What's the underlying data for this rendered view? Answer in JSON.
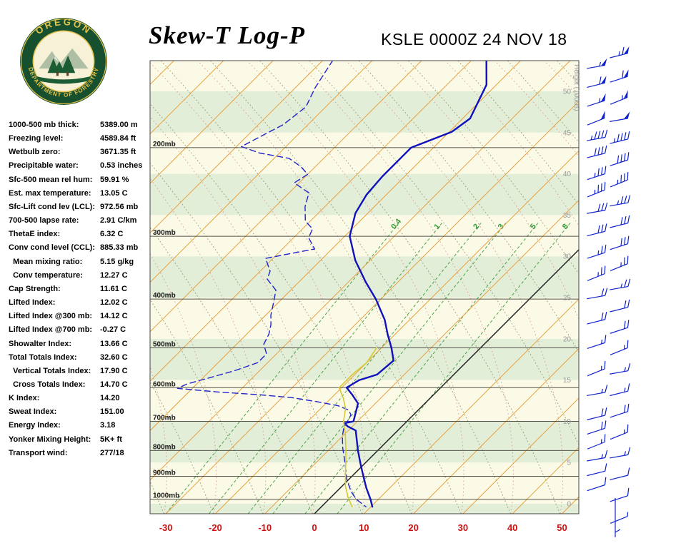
{
  "header": {
    "title": "Skew-T Log-P",
    "station_line": "KSLE 0000Z 24 NOV 18",
    "logo_text_top": "OREGON",
    "logo_text_bottom": "DEPARTMENT OF FORESTRY"
  },
  "stats": [
    {
      "label": "1000-500 mb thick:",
      "value": "5389.00 m"
    },
    {
      "label": "Freezing level:",
      "value": "4589.84 ft"
    },
    {
      "label": "Wetbulb zero:",
      "value": "3671.35 ft"
    },
    {
      "label": "Precipitable water:",
      "value": "0.53 inches"
    },
    {
      "label": "Sfc-500 mean rel hum:",
      "value": "59.91 %"
    },
    {
      "label": "Est. max temperature:",
      "value": "13.05 C"
    },
    {
      "label": "Sfc-Lift cond lev (LCL):",
      "value": "972.56 mb"
    },
    {
      "label": "700-500 lapse rate:",
      "value": "2.91 C/km"
    },
    {
      "label": "ThetaE index:",
      "value": "6.32 C"
    },
    {
      "label": "Conv cond level (CCL):",
      "value": "885.33 mb"
    },
    {
      "label": "  Mean mixing ratio:",
      "value": "5.15 g/kg"
    },
    {
      "label": "  Conv temperature:",
      "value": "12.27 C"
    },
    {
      "label": "Cap Strength:",
      "value": "11.61 C"
    },
    {
      "label": "Lifted Index:",
      "value": "12.02 C"
    },
    {
      "label": "Lifted Index @300 mb:",
      "value": "14.12 C"
    },
    {
      "label": "Lifted Index @700 mb:",
      "value": "-0.27 C"
    },
    {
      "label": "Showalter Index:",
      "value": "13.66 C"
    },
    {
      "label": "Total Totals Index:",
      "value": "32.60 C"
    },
    {
      "label": "  Vertical Totals Index:",
      "value": "17.90 C"
    },
    {
      "label": "  Cross Totals Index:",
      "value": "14.70 C"
    },
    {
      "label": "K Index:",
      "value": "14.20"
    },
    {
      "label": "Sweat Index:",
      "value": "151.00"
    },
    {
      "label": "Energy Index:",
      "value": "3.18"
    },
    {
      "label": "Yonker Mixing Height:",
      "value": "5K+ ft"
    },
    {
      "label": "Transport wind:",
      "value": "277/18"
    }
  ],
  "chart_data": {
    "type": "line",
    "title": "Skew-T Log-P sounding KSLE 0000Z 24 NOV 18",
    "x_axis": {
      "ticks_c": [
        -30,
        -20,
        -10,
        0,
        10,
        20,
        30,
        40,
        50
      ],
      "unit": "C"
    },
    "pressure_ticks_mb": [
      200,
      300,
      400,
      500,
      600,
      700,
      800,
      900,
      1000
    ],
    "pressure_label_suffix": "mb",
    "height_ticks_kft": [
      0,
      5,
      10,
      15,
      20,
      25,
      30,
      35,
      40,
      45,
      50
    ],
    "height_axis_label": "Height (1000s)",
    "mixing_ratio_lines": [
      {
        "label": "0.4",
        "t_bottom_c": -30.0
      },
      {
        "label": "1",
        "t_bottom_c": -21.3
      },
      {
        "label": "2",
        "t_bottom_c": -13.4
      },
      {
        "label": "3",
        "t_bottom_c": -8.4
      },
      {
        "label": "5",
        "t_bottom_c": -1.9
      },
      {
        "label": "8",
        "t_bottom_c": 4.6
      }
    ],
    "series": [
      {
        "name": "temperature",
        "style": "solid",
        "width": 2.4,
        "color": "#1111bb",
        "points": [
          [
            134,
            -57
          ],
          [
            150,
            -52
          ],
          [
            175,
            -48.5
          ],
          [
            186,
            -49.5
          ],
          [
            200,
            -54.5
          ],
          [
            212,
            -54.5
          ],
          [
            228,
            -54.5
          ],
          [
            248,
            -54
          ],
          [
            270,
            -52.5
          ],
          [
            300,
            -49
          ],
          [
            335,
            -43
          ],
          [
            370,
            -36.5
          ],
          [
            400,
            -31
          ],
          [
            440,
            -25
          ],
          [
            470,
            -21.5
          ],
          [
            500,
            -18
          ],
          [
            530,
            -15
          ],
          [
            565,
            -15.5
          ],
          [
            580,
            -18
          ],
          [
            600,
            -19
          ],
          [
            620,
            -16.4
          ],
          [
            645,
            -13.5
          ],
          [
            700,
            -10.8
          ],
          [
            706,
            -12.2
          ],
          [
            716,
            -11
          ],
          [
            730,
            -8.5
          ],
          [
            800,
            -4
          ],
          [
            850,
            -0.8
          ],
          [
            900,
            2.3
          ],
          [
            950,
            5.3
          ],
          [
            1000,
            8.4
          ],
          [
            1035,
            10.3
          ]
        ]
      },
      {
        "name": "dewpoint",
        "style": "dashed",
        "width": 1.4,
        "color": "#2222cc",
        "points": [
          [
            134,
            -88
          ],
          [
            152,
            -86
          ],
          [
            166,
            -84
          ],
          [
            180,
            -85
          ],
          [
            199,
            -89
          ],
          [
            205,
            -84
          ],
          [
            210,
            -77
          ],
          [
            218,
            -73
          ],
          [
            226,
            -70
          ],
          [
            235,
            -71
          ],
          [
            246,
            -66
          ],
          [
            262,
            -64
          ],
          [
            280,
            -61
          ],
          [
            290,
            -58
          ],
          [
            302,
            -57
          ],
          [
            318,
            -53.5
          ],
          [
            332,
            -61.5
          ],
          [
            352,
            -58
          ],
          [
            365,
            -57
          ],
          [
            384,
            -53
          ],
          [
            406,
            -51
          ],
          [
            430,
            -49
          ],
          [
            450,
            -47
          ],
          [
            470,
            -45.5
          ],
          [
            492,
            -44.5
          ],
          [
            514,
            -42
          ],
          [
            535,
            -42
          ],
          [
            555,
            -45
          ],
          [
            575,
            -49
          ],
          [
            590,
            -52
          ],
          [
            602,
            -53
          ],
          [
            612,
            -44
          ],
          [
            620,
            -35
          ],
          [
            628,
            -28
          ],
          [
            640,
            -22
          ],
          [
            652,
            -17
          ],
          [
            665,
            -14
          ],
          [
            680,
            -12.6
          ],
          [
            700,
            -12
          ],
          [
            720,
            -11.5
          ],
          [
            750,
            -10
          ],
          [
            792,
            -7.5
          ],
          [
            840,
            -4.5
          ],
          [
            880,
            -2.2
          ],
          [
            915,
            -0.3
          ],
          [
            965,
            2.9
          ],
          [
            1000,
            5.5
          ],
          [
            1035,
            9
          ]
        ]
      },
      {
        "name": "wetbulb",
        "style": "solid",
        "width": 1.6,
        "color": "#d6c830",
        "points": [
          [
            500,
            -21
          ],
          [
            535,
            -20
          ],
          [
            565,
            -20.5
          ],
          [
            600,
            -20.5
          ],
          [
            630,
            -17.5
          ],
          [
            660,
            -15
          ],
          [
            700,
            -12.8
          ],
          [
            740,
            -10
          ],
          [
            790,
            -7
          ],
          [
            840,
            -4.3
          ],
          [
            890,
            -1.8
          ],
          [
            940,
            0.6
          ],
          [
            990,
            3.4
          ],
          [
            1035,
            6.2
          ]
        ]
      }
    ],
    "wind_barbs": {
      "transport_wind": "277/18",
      "column_inner": [
        {
          "p": 138,
          "kt": 55
        },
        {
          "p": 150,
          "kt": 60
        },
        {
          "p": 163,
          "kt": 55
        },
        {
          "p": 177,
          "kt": 50
        },
        {
          "p": 192,
          "kt": 45
        },
        {
          "p": 207,
          "kt": 40
        },
        {
          "p": 228,
          "kt": 35
        },
        {
          "p": 246,
          "kt": 35
        },
        {
          "p": 268,
          "kt": 30
        },
        {
          "p": 296,
          "kt": 30
        },
        {
          "p": 327,
          "kt": 25
        },
        {
          "p": 361,
          "kt": 25
        },
        {
          "p": 396,
          "kt": 20
        },
        {
          "p": 443,
          "kt": 20
        },
        {
          "p": 494,
          "kt": 15
        },
        {
          "p": 558,
          "kt": 15
        },
        {
          "p": 617,
          "kt": 15
        },
        {
          "p": 687,
          "kt": 20
        },
        {
          "p": 731,
          "kt": 20
        },
        {
          "p": 780,
          "kt": 15
        },
        {
          "p": 832,
          "kt": 15
        },
        {
          "p": 887,
          "kt": 10
        },
        {
          "p": 947,
          "kt": 10
        }
      ],
      "column_outer": [
        {
          "p": 131,
          "kt": 65
        },
        {
          "p": 146,
          "kt": 60
        },
        {
          "p": 161,
          "kt": 55
        },
        {
          "p": 176,
          "kt": 50
        },
        {
          "p": 194,
          "kt": 45
        },
        {
          "p": 214,
          "kt": 40
        },
        {
          "p": 235,
          "kt": 35
        },
        {
          "p": 259,
          "kt": 35
        },
        {
          "p": 285,
          "kt": 30
        },
        {
          "p": 314,
          "kt": 30
        },
        {
          "p": 345,
          "kt": 25
        },
        {
          "p": 380,
          "kt": 25
        },
        {
          "p": 419,
          "kt": 20
        },
        {
          "p": 461,
          "kt": 20
        },
        {
          "p": 507,
          "kt": 15
        },
        {
          "p": 559,
          "kt": 15
        },
        {
          "p": 615,
          "kt": 15
        },
        {
          "p": 677,
          "kt": 20
        },
        {
          "p": 746,
          "kt": 15
        },
        {
          "p": 821,
          "kt": 15
        },
        {
          "p": 904,
          "kt": 10
        },
        {
          "p": 995,
          "kt": 10
        },
        {
          "p": 1096,
          "kt": 5
        }
      ]
    },
    "colors": {
      "band_green": "#e3eed8",
      "band_cream": "#fbfae6",
      "isotherm": "#e8a040",
      "freezing_isotherm": "#1a1a1a",
      "mixing": "#3a9a3a",
      "dry_adiabat": "#8a8a5a",
      "moist_adiabat": "#d08080",
      "grid": "#44443c",
      "border": "#444444",
      "x_tick": "#cc1111",
      "height_tick": "#999999",
      "pressure_label": "#1a1a1a",
      "barb": "#1122cc"
    }
  }
}
